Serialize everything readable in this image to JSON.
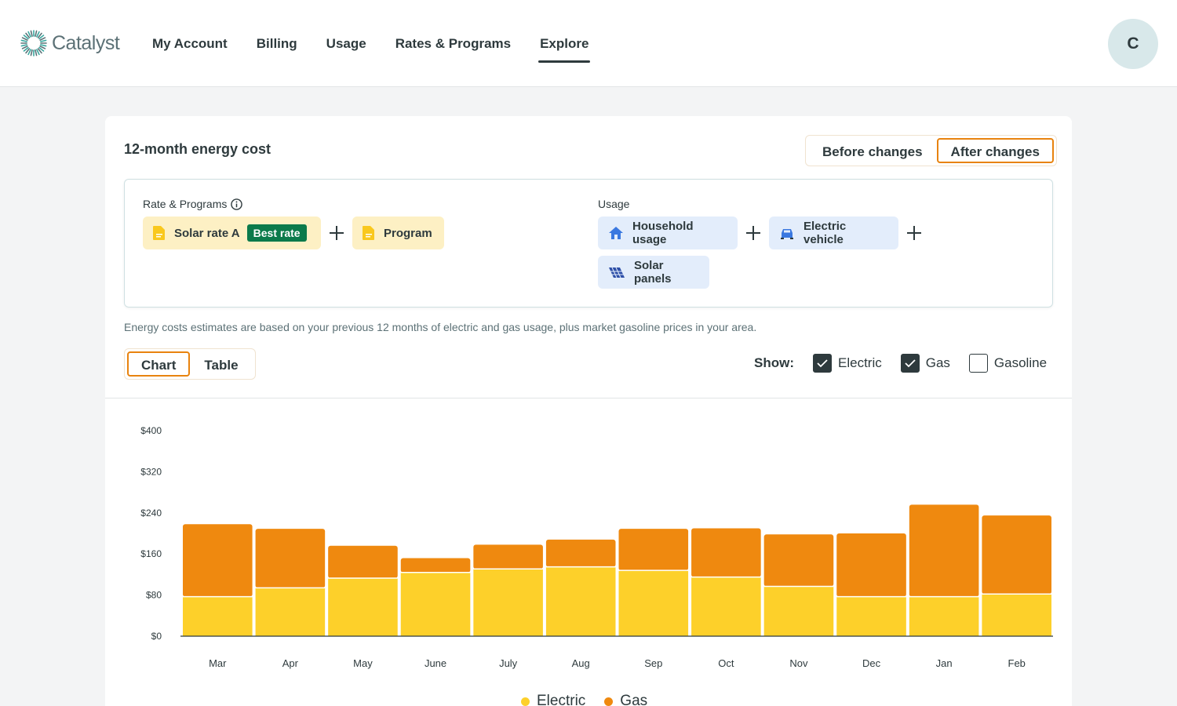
{
  "header": {
    "brand": "Catalyst",
    "nav": [
      "My Account",
      "Billing",
      "Usage",
      "Rates & Programs",
      "Explore"
    ],
    "active_nav": "Explore",
    "avatar_initial": "C"
  },
  "card": {
    "title": "12-month energy cost",
    "toggle": {
      "before": "Before changes",
      "after": "After changes",
      "selected": "After changes"
    },
    "rate_section_label": "Rate & Programs",
    "usage_section_label": "Usage",
    "rate_chips": [
      {
        "label": "Solar rate A",
        "badge": "Best rate",
        "icon": "document-icon"
      },
      {
        "label": "Program",
        "icon": "document-icon"
      }
    ],
    "usage_chips": [
      {
        "label": "Household usage",
        "icon": "house-icon"
      },
      {
        "label": "Electric vehicle",
        "icon": "car-icon"
      },
      {
        "label": "Solar panels",
        "icon": "solar-panel-icon"
      }
    ],
    "note": "Energy costs estimates are based on your previous 12 months of electric and gas usage, plus market gasoline prices in your area.",
    "view_toggle": {
      "chart": "Chart",
      "table": "Table",
      "selected": "Chart"
    },
    "show_label": "Show:",
    "show_options": [
      {
        "label": "Electric",
        "checked": true
      },
      {
        "label": "Gas",
        "checked": true
      },
      {
        "label": "Gasoline",
        "checked": false
      }
    ]
  },
  "colors": {
    "electric": "#fdd02a",
    "gas": "#ef890f",
    "accent": "#e8830e",
    "badge": "#0b7a4b"
  },
  "chart_data": {
    "type": "bar",
    "stacked": true,
    "title": "12-month energy cost",
    "categories": [
      "Mar",
      "Apr",
      "May",
      "June",
      "July",
      "Aug",
      "Sep",
      "Oct",
      "Nov",
      "Dec",
      "Jan",
      "Feb"
    ],
    "series": [
      {
        "name": "Electric",
        "values": [
          77,
          94,
          113,
          124,
          131,
          135,
          128,
          115,
          97,
          77,
          77,
          82
        ]
      },
      {
        "name": "Gas",
        "values": [
          141,
          115,
          63,
          28,
          47,
          53,
          81,
          95,
          101,
          123,
          179,
          153
        ]
      }
    ],
    "yticks": [
      "$0",
      "$80",
      "$160",
      "$240",
      "$320",
      "$400"
    ],
    "ylim": [
      0,
      400
    ],
    "legend": [
      "Electric",
      "Gas"
    ]
  }
}
